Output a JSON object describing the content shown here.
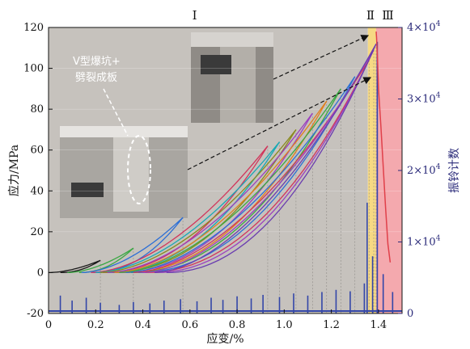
{
  "chart_data": {
    "type": "line",
    "xlabel": "应变/%",
    "ylabel": "应力/MPa",
    "ylabel_right": "振铃计数",
    "xlim": [
      0,
      1.5
    ],
    "ylim": [
      -20,
      120
    ],
    "ylim_right": [
      0,
      40000
    ],
    "x_ticks": [
      "0",
      "0.2",
      "0.4",
      "0.6",
      "0.8",
      "1.0",
      "1.2",
      "1.4"
    ],
    "y_ticks": [
      "-20",
      "0",
      "20",
      "40",
      "60",
      "80",
      "100",
      "120"
    ],
    "y_right_ticks": [
      {
        "base": "0",
        "exp": ""
      },
      {
        "base": "1×10",
        "exp": "4"
      },
      {
        "base": "2×10",
        "exp": "4"
      },
      {
        "base": "3×10",
        "exp": "4"
      },
      {
        "base": "4×10",
        "exp": "4"
      }
    ],
    "stages": [
      {
        "label": "Ⅰ",
        "x_from": 0,
        "x_to": 1.355,
        "color": "#c6c2bd"
      },
      {
        "label": "Ⅱ",
        "x_from": 1.355,
        "x_to": 1.39,
        "color": "#f6d983"
      },
      {
        "label": "Ⅲ",
        "x_from": 1.39,
        "x_to": 1.5,
        "color": "#f4a9ae"
      }
    ],
    "annotation": {
      "line1": "V型爆坑+",
      "line2": "劈裂成板"
    },
    "loading_cycles": [
      {
        "x_start": 0.0,
        "x_end": 0.22,
        "y_end": 6,
        "color": "#1a1a1a"
      },
      {
        "x_start": 0.08,
        "x_end": 0.36,
        "y_end": 12,
        "color": "#3aa843"
      },
      {
        "x_start": 0.14,
        "x_end": 0.57,
        "y_end": 27,
        "color": "#2d6fd6"
      },
      {
        "x_start": 0.18,
        "x_end": 0.93,
        "y_end": 62,
        "color": "#d1355b"
      },
      {
        "x_start": 0.2,
        "x_end": 0.98,
        "y_end": 64,
        "color": "#17a9b5"
      },
      {
        "x_start": 0.22,
        "x_end": 1.05,
        "y_end": 70,
        "color": "#8a8a1c"
      },
      {
        "x_start": 0.25,
        "x_end": 1.12,
        "y_end": 78,
        "color": "#9b3fbf"
      },
      {
        "x_start": 0.28,
        "x_end": 1.18,
        "y_end": 84,
        "color": "#e0801e"
      },
      {
        "x_start": 0.3,
        "x_end": 1.24,
        "y_end": 90,
        "color": "#3aa843"
      },
      {
        "x_start": 0.33,
        "x_end": 1.3,
        "y_end": 96,
        "color": "#2d6fd6"
      },
      {
        "x_start": 0.36,
        "x_end": 1.36,
        "y_end": 104,
        "color": "#d1355b"
      },
      {
        "x_start": 0.4,
        "x_end": 1.38,
        "y_end": 109,
        "color": "#9b3fbf"
      },
      {
        "x_start": 0.45,
        "x_end": 1.39,
        "y_end": 112,
        "color": "#6a3db0"
      }
    ],
    "failure_curve": {
      "color": "#e0404a",
      "points": [
        [
          1.39,
          118
        ],
        [
          1.392,
          115
        ],
        [
          1.396,
          104
        ],
        [
          1.4,
          90
        ],
        [
          1.41,
          72
        ],
        [
          1.42,
          52
        ],
        [
          1.43,
          32
        ],
        [
          1.44,
          14
        ],
        [
          1.45,
          5
        ]
      ]
    },
    "ringing_count": {
      "color": "#3346a8",
      "spikes": [
        [
          0.05,
          2500
        ],
        [
          0.1,
          1800
        ],
        [
          0.16,
          2200
        ],
        [
          0.22,
          1500
        ],
        [
          0.3,
          1200
        ],
        [
          0.36,
          1600
        ],
        [
          0.43,
          1400
        ],
        [
          0.49,
          1800
        ],
        [
          0.56,
          2000
        ],
        [
          0.63,
          1700
        ],
        [
          0.69,
          2200
        ],
        [
          0.74,
          1900
        ],
        [
          0.8,
          2400
        ],
        [
          0.86,
          2100
        ],
        [
          0.91,
          2600
        ],
        [
          0.98,
          2300
        ],
        [
          1.04,
          2800
        ],
        [
          1.1,
          2500
        ],
        [
          1.16,
          3000
        ],
        [
          1.22,
          3300
        ],
        [
          1.28,
          3100
        ],
        [
          1.34,
          4200
        ],
        [
          1.352,
          15500
        ],
        [
          1.375,
          8000
        ],
        [
          1.395,
          38000
        ],
        [
          1.42,
          5500
        ],
        [
          1.46,
          3000
        ]
      ]
    }
  }
}
